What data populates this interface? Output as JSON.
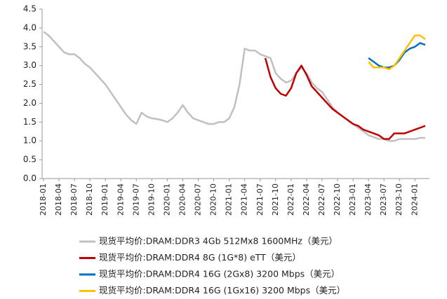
{
  "chart_data": {
    "type": "line",
    "categories": [
      "2018-01",
      null,
      null,
      "2018-04",
      null,
      null,
      "2018-07",
      null,
      null,
      "2018-10",
      null,
      null,
      "2019-01",
      null,
      null,
      "2019-04",
      null,
      null,
      "2019-07",
      null,
      null,
      "2019-10",
      null,
      null,
      "2020-01",
      null,
      null,
      "2020-04",
      null,
      null,
      "2020-07",
      null,
      null,
      "2020-10",
      null,
      null,
      "2021-01",
      null,
      null,
      "2021-04",
      null,
      null,
      "2021-07",
      null,
      null,
      "2021-10",
      null,
      null,
      "2022-01",
      null,
      null,
      "2022-04",
      null,
      null,
      "2022-07",
      null,
      null,
      "2022-10",
      null,
      null,
      "2023-01",
      null,
      null,
      "2023-04",
      null,
      null,
      "2023-07",
      null,
      null,
      "2023-10",
      null,
      null,
      "2024-01",
      null,
      null
    ],
    "series": [
      {
        "name": "现货平均价:DRAM:DDR3 4Gb 512Mx8 1600MHz（美元）",
        "color": "#c0c0c0",
        "values": [
          3.9,
          3.8,
          3.65,
          3.5,
          3.35,
          3.3,
          3.3,
          3.2,
          3.05,
          2.95,
          2.8,
          2.65,
          2.5,
          2.3,
          2.1,
          1.9,
          1.7,
          1.55,
          1.45,
          1.75,
          1.65,
          1.6,
          1.58,
          1.55,
          1.5,
          1.6,
          1.75,
          1.95,
          1.75,
          1.6,
          1.55,
          1.5,
          1.45,
          1.45,
          1.5,
          1.5,
          1.6,
          1.9,
          2.5,
          3.45,
          3.4,
          3.4,
          3.3,
          3.25,
          3.2,
          2.8,
          2.65,
          2.55,
          2.6,
          2.8,
          2.95,
          2.8,
          2.55,
          2.4,
          2.3,
          2.1,
          1.9,
          1.75,
          1.65,
          1.55,
          1.45,
          1.35,
          1.25,
          1.15,
          1.1,
          1.05,
          1.05,
          1.0,
          1.0,
          1.05,
          1.05,
          1.05,
          1.05,
          1.08,
          1.08
        ]
      },
      {
        "name": "现货平均价:DRAM:DDR4 8G (1G*8) eTT（美元）",
        "color": "#c00000",
        "values": [
          null,
          null,
          null,
          null,
          null,
          null,
          null,
          null,
          null,
          null,
          null,
          null,
          null,
          null,
          null,
          null,
          null,
          null,
          null,
          null,
          null,
          null,
          null,
          null,
          null,
          null,
          null,
          null,
          null,
          null,
          null,
          null,
          null,
          null,
          null,
          null,
          null,
          null,
          null,
          null,
          null,
          null,
          null,
          3.2,
          2.7,
          2.4,
          2.25,
          2.2,
          2.4,
          2.8,
          3.0,
          2.75,
          2.45,
          2.3,
          2.15,
          2.0,
          1.85,
          1.75,
          1.65,
          1.55,
          1.45,
          1.4,
          1.3,
          1.25,
          1.2,
          1.15,
          1.05,
          1.05,
          1.2,
          1.2,
          1.2,
          1.25,
          1.3,
          1.35,
          1.4
        ]
      },
      {
        "name": "现货平均价:DRAM:DDR4 16G (2Gx8) 3200 Mbps（美元）",
        "color": "#0070c0",
        "values": [
          null,
          null,
          null,
          null,
          null,
          null,
          null,
          null,
          null,
          null,
          null,
          null,
          null,
          null,
          null,
          null,
          null,
          null,
          null,
          null,
          null,
          null,
          null,
          null,
          null,
          null,
          null,
          null,
          null,
          null,
          null,
          null,
          null,
          null,
          null,
          null,
          null,
          null,
          null,
          null,
          null,
          null,
          null,
          null,
          null,
          null,
          null,
          null,
          null,
          null,
          null,
          null,
          null,
          null,
          null,
          null,
          null,
          null,
          null,
          null,
          null,
          null,
          null,
          3.2,
          3.1,
          3.0,
          2.95,
          2.95,
          3.0,
          3.15,
          3.35,
          3.45,
          3.5,
          3.6,
          3.55
        ]
      },
      {
        "name": "现货平均价:DRAM:DDR4 16G (1Gx16) 3200 Mbps（美元）",
        "color": "#ffc000",
        "values": [
          null,
          null,
          null,
          null,
          null,
          null,
          null,
          null,
          null,
          null,
          null,
          null,
          null,
          null,
          null,
          null,
          null,
          null,
          null,
          null,
          null,
          null,
          null,
          null,
          null,
          null,
          null,
          null,
          null,
          null,
          null,
          null,
          null,
          null,
          null,
          null,
          null,
          null,
          null,
          null,
          null,
          null,
          null,
          null,
          null,
          null,
          null,
          null,
          null,
          null,
          null,
          null,
          null,
          null,
          null,
          null,
          null,
          null,
          null,
          null,
          null,
          null,
          null,
          3.1,
          2.95,
          2.95,
          2.95,
          2.9,
          3.0,
          3.2,
          3.4,
          3.6,
          3.8,
          3.8,
          3.7
        ]
      }
    ],
    "ylim": [
      0,
      4.5
    ],
    "yticks": [
      {
        "value": 0,
        "label": "0.0"
      },
      0.5,
      {
        "value": 1,
        "label": "1.0"
      },
      1.5,
      {
        "value": 2,
        "label": "2.0"
      },
      2.5,
      {
        "value": 3,
        "label": "3.0"
      },
      3.5,
      {
        "value": 4,
        "label": "4.0"
      },
      4.5
    ],
    "grid": false,
    "legend": "bottom"
  }
}
